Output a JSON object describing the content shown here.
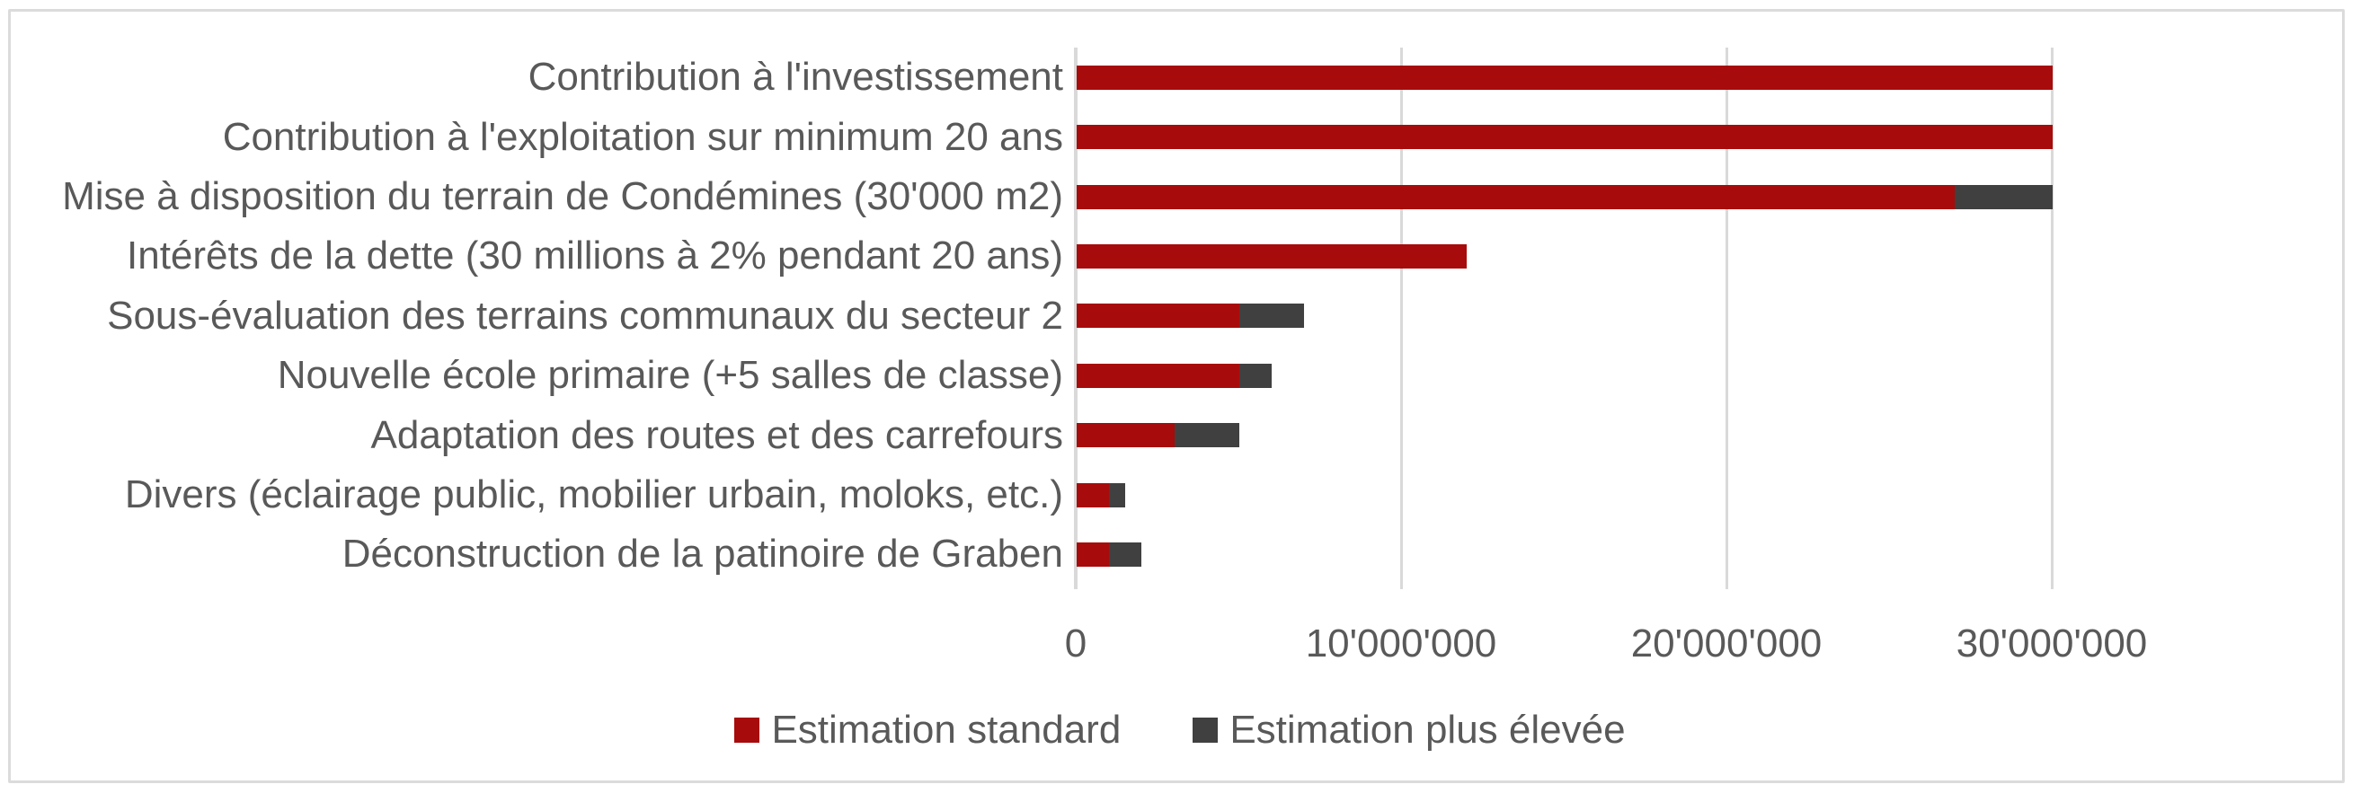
{
  "chart_data": {
    "type": "bar",
    "orientation": "horizontal",
    "stacked": true,
    "title": "",
    "categories": [
      "Contribution à l'investissement",
      "Contribution à l'exploitation sur minimum 20 ans",
      "Mise à disposition du terrain de Condémines (30'000 m2)",
      "Intérêts de la dette (30 millions à 2% pendant 20 ans)",
      "Sous-évaluation des terrains communaux du secteur 2",
      "Nouvelle école primaire (+5 salles de classe)",
      "Adaptation des routes et des carrefours",
      "Divers (éclairage public, mobilier urbain, moloks, etc.)",
      "Déconstruction de la patinoire de Graben"
    ],
    "series": [
      {
        "name": "Estimation standard",
        "color": "#A80B0B",
        "values": [
          30000000,
          30000000,
          27000000,
          12000000,
          5000000,
          5000000,
          3000000,
          1000000,
          1000000
        ]
      },
      {
        "name": "Estimation plus élevée",
        "color": "#404040",
        "values": [
          0,
          0,
          3000000,
          0,
          2000000,
          1000000,
          2000000,
          500000,
          1000000
        ]
      }
    ],
    "x_axis": {
      "ticks": [
        0,
        10000000,
        20000000,
        30000000
      ],
      "tick_labels": [
        "0",
        "10'000'000",
        "20'000'000",
        "30'000'000"
      ],
      "xlim": [
        0,
        38500000
      ],
      "gridlines": true
    },
    "legend": {
      "position": "bottom",
      "entries": [
        "Estimation standard",
        "Estimation plus élevée"
      ]
    }
  },
  "colors": {
    "bar_standard": "#A80B0B",
    "bar_higher": "#404040",
    "gridline": "#D9D9D9",
    "text": "#595959",
    "frame_border": "#DBDBDB",
    "background": "#FFFFFF"
  }
}
